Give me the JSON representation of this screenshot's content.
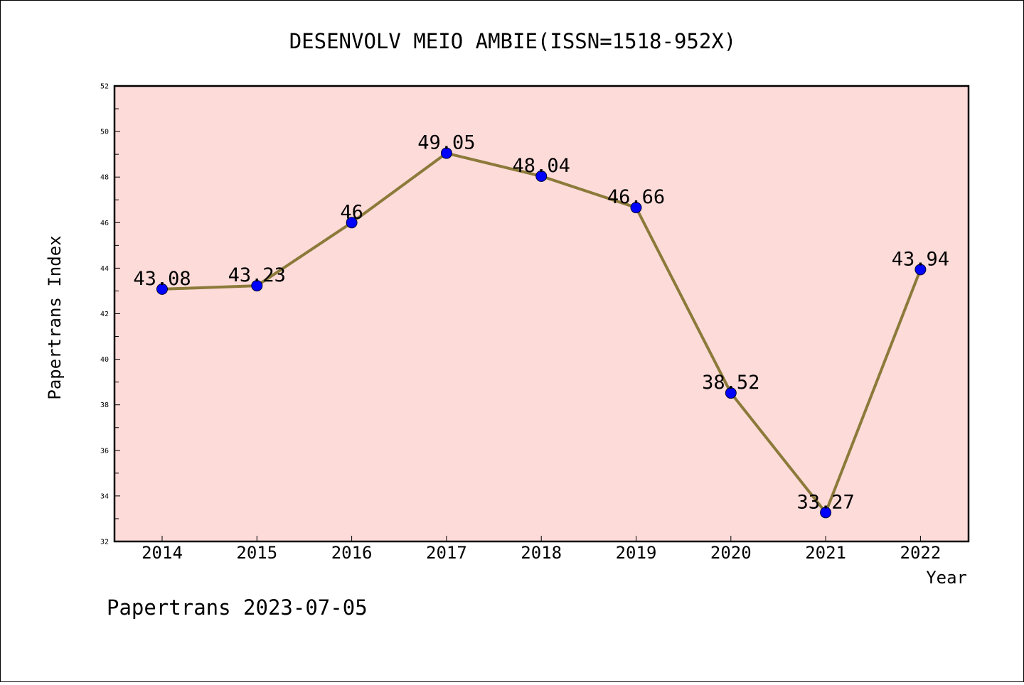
{
  "chart_data": {
    "type": "line",
    "title": "DESENVOLV MEIO AMBIE(ISSN=1518-952X)",
    "xlabel": "Year",
    "ylabel": "Papertrans Index",
    "x": [
      2014,
      2015,
      2016,
      2017,
      2018,
      2019,
      2020,
      2021,
      2022
    ],
    "categories": [
      "2014",
      "2015",
      "2016",
      "2017",
      "2018",
      "2019",
      "2020",
      "2021",
      "2022"
    ],
    "values": [
      43.08,
      43.23,
      46,
      49.05,
      48.04,
      46.66,
      38.52,
      33.27,
      43.94
    ],
    "data_labels": [
      "43.08",
      "43.23",
      "46",
      "49.05",
      "48.04",
      "46.66",
      "38.52",
      "33.27",
      "43.94"
    ],
    "ylim": [
      32,
      52
    ],
    "yticks": [
      32,
      34,
      36,
      38,
      40,
      42,
      44,
      46,
      48,
      50,
      52
    ],
    "grid": false,
    "plot_background": "#fddbd9",
    "line_color": "#8c7a3a",
    "marker_color": "#0000ff"
  },
  "footer": {
    "text": "Papertrans 2023-07-05"
  }
}
